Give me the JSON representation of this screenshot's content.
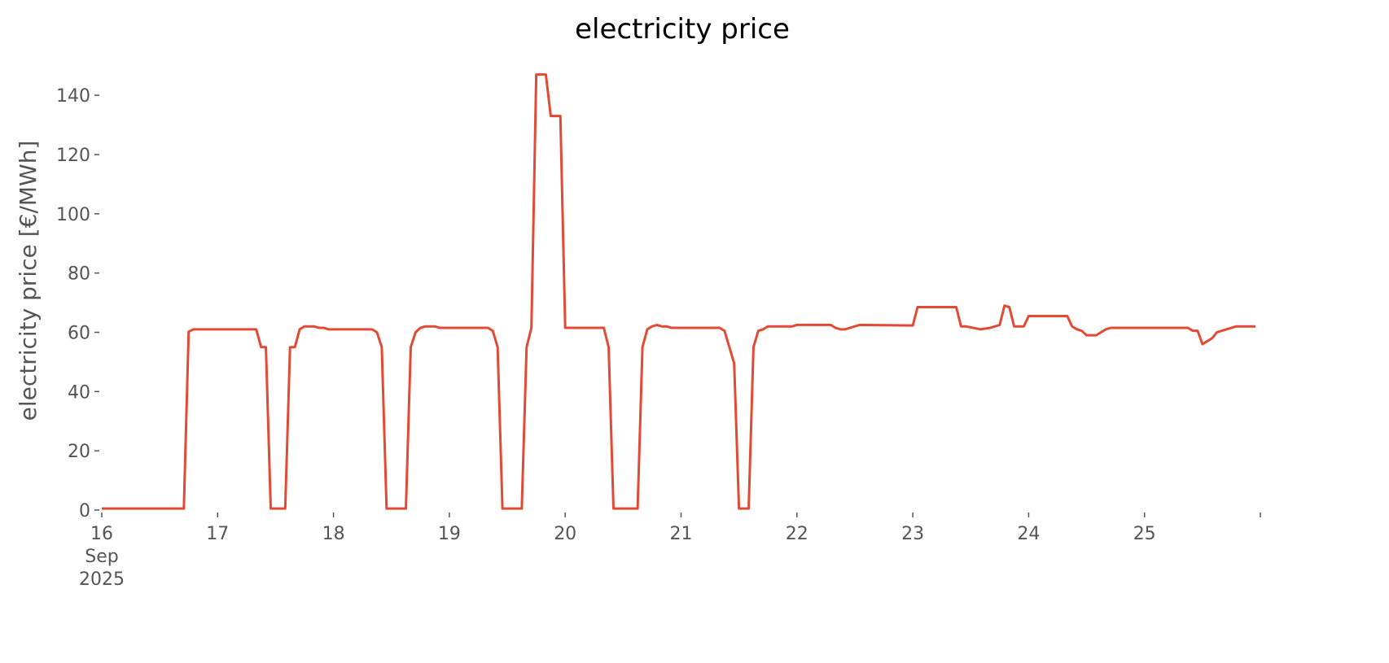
{
  "chart_data": {
    "type": "line",
    "title": "electricity price",
    "ylabel": "electricity price [€/MWh]",
    "x": [
      "2025-09-16T00:00",
      "2025-09-16T17:00",
      "2025-09-16T18:00",
      "2025-09-16T19:00",
      "2025-09-17T08:00",
      "2025-09-17T09:00",
      "2025-09-17T10:00",
      "2025-09-17T11:00",
      "2025-09-17T14:00",
      "2025-09-17T15:00",
      "2025-09-17T16:00",
      "2025-09-17T17:00",
      "2025-09-17T18:00",
      "2025-09-17T20:00",
      "2025-09-17T21:00",
      "2025-09-17T22:00",
      "2025-09-17T23:00",
      "2025-09-18T08:00",
      "2025-09-18T09:00",
      "2025-09-18T10:00",
      "2025-09-18T11:00",
      "2025-09-18T15:00",
      "2025-09-18T16:00",
      "2025-09-18T17:00",
      "2025-09-18T18:00",
      "2025-09-18T19:00",
      "2025-09-18T21:00",
      "2025-09-18T22:00",
      "2025-09-19T08:00",
      "2025-09-19T09:00",
      "2025-09-19T10:00",
      "2025-09-19T11:00",
      "2025-09-19T15:00",
      "2025-09-19T16:00",
      "2025-09-19T17:00",
      "2025-09-19T18:00",
      "2025-09-19T20:00",
      "2025-09-19T21:00",
      "2025-09-19T23:00",
      "2025-09-20T00:00",
      "2025-09-20T08:00",
      "2025-09-20T09:00",
      "2025-09-20T10:00",
      "2025-09-20T15:00",
      "2025-09-20T16:00",
      "2025-09-20T17:00",
      "2025-09-20T18:00",
      "2025-09-20T19:00",
      "2025-09-20T20:00",
      "2025-09-20T21:00",
      "2025-09-20T22:00",
      "2025-09-21T08:00",
      "2025-09-21T09:00",
      "2025-09-21T11:00",
      "2025-09-21T12:00",
      "2025-09-21T14:00",
      "2025-09-21T15:00",
      "2025-09-21T16:00",
      "2025-09-21T17:00",
      "2025-09-21T18:00",
      "2025-09-21T23:00",
      "2025-09-22T00:00",
      "2025-09-22T07:00",
      "2025-09-22T08:00",
      "2025-09-22T09:00",
      "2025-09-22T10:00",
      "2025-09-22T12:00",
      "2025-09-22T13:00",
      "2025-09-23T00:00",
      "2025-09-23T01:00",
      "2025-09-23T09:00",
      "2025-09-23T10:00",
      "2025-09-23T11:00",
      "2025-09-23T14:00",
      "2025-09-23T16:00",
      "2025-09-23T18:00",
      "2025-09-23T19:00",
      "2025-09-23T20:00",
      "2025-09-23T21:00",
      "2025-09-23T23:00",
      "2025-09-24T00:00",
      "2025-09-24T08:00",
      "2025-09-24T09:00",
      "2025-09-24T10:00",
      "2025-09-24T11:00",
      "2025-09-24T12:00",
      "2025-09-24T14:00",
      "2025-09-24T16:00",
      "2025-09-24T17:00",
      "2025-09-25T00:00",
      "2025-09-25T09:00",
      "2025-09-25T10:00",
      "2025-09-25T11:00",
      "2025-09-25T12:00",
      "2025-09-25T13:00",
      "2025-09-25T14:00",
      "2025-09-25T15:00",
      "2025-09-25T17:00",
      "2025-09-25T19:00",
      "2025-09-25T23:00"
    ],
    "series": [
      {
        "name": "electricity price",
        "color": "#e24a33",
        "values": [
          0.5,
          0.5,
          60.2,
          61,
          61,
          55,
          55,
          0.5,
          0.5,
          55,
          55,
          61,
          62,
          62,
          61.5,
          61.5,
          61,
          61,
          60,
          55,
          0.5,
          0.5,
          55,
          60,
          61.5,
          62,
          62,
          61.5,
          61.5,
          60.5,
          55,
          0.5,
          0.5,
          55,
          61.5,
          147,
          147,
          133,
          133,
          61.5,
          61.5,
          55,
          0.5,
          0.5,
          55,
          61,
          62,
          62.5,
          62,
          62,
          61.5,
          61.5,
          60.5,
          49.5,
          0.5,
          0.5,
          55,
          60.5,
          61,
          62,
          62,
          62.5,
          62.5,
          61.5,
          61,
          61,
          62,
          62.5,
          62.3,
          68.5,
          68.5,
          62,
          62,
          61,
          61.5,
          62.5,
          69,
          68.5,
          62,
          62,
          65.5,
          65.5,
          62,
          61,
          60.5,
          59,
          59,
          61,
          61.5,
          61.5,
          61.5,
          60.5,
          60.5,
          56,
          57,
          58,
          60,
          61,
          62,
          62
        ]
      }
    ],
    "xlim": [
      "2025-09-16T00:00",
      "2025-09-26T00:00"
    ],
    "xticks": [
      {
        "value": "2025-09-16",
        "label": "16\nSep\n2025"
      },
      {
        "value": "2025-09-17",
        "label": "17"
      },
      {
        "value": "2025-09-18",
        "label": "18"
      },
      {
        "value": "2025-09-19",
        "label": "19"
      },
      {
        "value": "2025-09-20",
        "label": "20"
      },
      {
        "value": "2025-09-21",
        "label": "21"
      },
      {
        "value": "2025-09-22",
        "label": "22"
      },
      {
        "value": "2025-09-23",
        "label": "23"
      },
      {
        "value": "2025-09-24",
        "label": "24"
      },
      {
        "value": "2025-09-25",
        "label": "25"
      },
      {
        "value": "2025-09-26"
      }
    ],
    "ylim": [
      0,
      148
    ],
    "yticks": [
      0,
      20,
      40,
      60,
      80,
      100,
      120,
      140
    ],
    "grid": false
  }
}
